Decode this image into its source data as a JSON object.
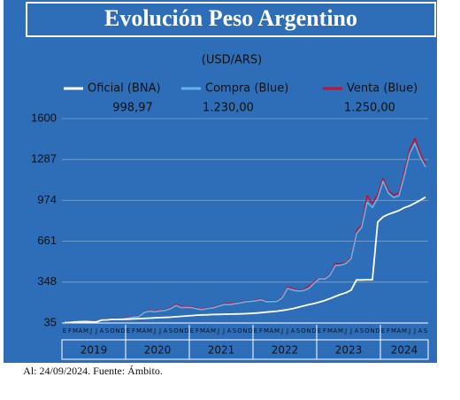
{
  "chart_data": {
    "type": "line",
    "title": "Evolución Peso Argentino",
    "subtitle": "(USD/ARS)",
    "categories": [
      "E",
      "F",
      "M",
      "A",
      "M",
      "J",
      "J",
      "A",
      "S",
      "O",
      "N",
      "D",
      "E",
      "F",
      "M",
      "A",
      "M",
      "J",
      "J",
      "A",
      "S",
      "O",
      "N",
      "D",
      "E",
      "F",
      "M",
      "A",
      "M",
      "J",
      "J",
      "A",
      "S",
      "O",
      "N",
      "D",
      "E",
      "F",
      "M",
      "A",
      "M",
      "J",
      "J",
      "A",
      "S",
      "O",
      "N",
      "D",
      "E",
      "F",
      "M",
      "A",
      "M",
      "J",
      "J",
      "A",
      "S",
      "O",
      "N",
      "D",
      "E",
      "F",
      "M",
      "A",
      "M",
      "J",
      "J",
      "A",
      "S"
    ],
    "year_labels": [
      "2019",
      "2020",
      "2021",
      "2022",
      "2023",
      "2024"
    ],
    "series": [
      {
        "name": "Venta (Blue)",
        "color": "#c8102e",
        "latest_label": "1.250,00",
        "values": [
          38,
          40,
          44,
          46,
          46,
          45,
          44,
          59,
          60,
          66,
          66,
          70,
          75,
          83,
          87,
          120,
          130,
          125,
          132,
          135,
          150,
          178,
          160,
          160,
          157,
          148,
          142,
          150,
          156,
          168,
          182,
          182,
          187,
          193,
          200,
          205,
          210,
          220,
          202,
          203,
          205,
          233,
          310,
          295,
          287,
          290,
          315,
          350,
          380,
          377,
          405,
          490,
          490,
          495,
          540,
          740,
          785,
          1010,
          950,
          1020,
          1140,
          1050,
          1015,
          1030,
          1190,
          1360,
          1450,
          1335,
          1250
        ]
      },
      {
        "name": "Compra (Blue)",
        "color": "#62b4ea",
        "latest_label": "1.230,00",
        "values": [
          37,
          39,
          42,
          44,
          45,
          43,
          43,
          57,
          58,
          63,
          64,
          67,
          72,
          80,
          84,
          116,
          126,
          121,
          128,
          131,
          145,
          170,
          153,
          155,
          152,
          143,
          138,
          146,
          151,
          164,
          176,
          176,
          182,
          188,
          196,
          200,
          205,
          214,
          198,
          199,
          200,
          228,
          300,
          288,
          280,
          283,
          300,
          340,
          375,
          372,
          400,
          475,
          478,
          490,
          530,
          720,
          770,
          960,
          920,
          990,
          1120,
          1030,
          995,
          1010,
          1160,
          1330,
          1410,
          1305,
          1230
        ]
      },
      {
        "name": "Oficial (BNA)",
        "color": "#ffffff",
        "latest_label": "998,97",
        "values": [
          38,
          39,
          43,
          45,
          46,
          44,
          43,
          58,
          59,
          63,
          63,
          63,
          64,
          66,
          68,
          70,
          72,
          74,
          76,
          78,
          80,
          83,
          86,
          89,
          92,
          95,
          97,
          98,
          100,
          101,
          102,
          103,
          104,
          105,
          106,
          108,
          111,
          114,
          118,
          122,
          126,
          131,
          137,
          145,
          155,
          165,
          176,
          184,
          195,
          207,
          222,
          238,
          254,
          267,
          287,
          365,
          365,
          366,
          366,
          808,
          847,
          867,
          881,
          896,
          918,
          932,
          952,
          975,
          998.97
        ]
      }
    ],
    "ylim": [
      35,
      1600
    ],
    "yticks": [
      35,
      348,
      661,
      974,
      1287,
      1600
    ],
    "grid": true,
    "footnote": "Al: 24/09/2024. Fuente: Ámbito."
  }
}
